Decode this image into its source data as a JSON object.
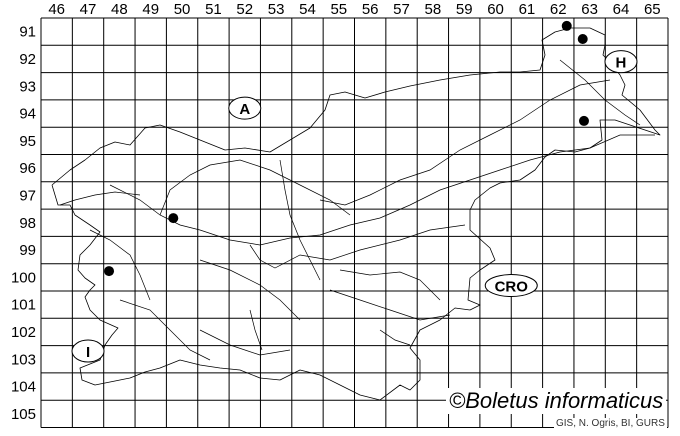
{
  "map": {
    "columns": [
      "46",
      "47",
      "48",
      "49",
      "50",
      "51",
      "52",
      "53",
      "54",
      "55",
      "56",
      "57",
      "58",
      "59",
      "60",
      "61",
      "62",
      "63",
      "64",
      "65"
    ],
    "rows": [
      "91",
      "92",
      "93",
      "94",
      "95",
      "96",
      "97",
      "98",
      "99",
      "100",
      "101",
      "102",
      "103",
      "104",
      "105"
    ],
    "country_labels": [
      {
        "text": "A",
        "col": 52.5,
        "row": 94.3
      },
      {
        "text": "H",
        "col": 64.5,
        "row": 92.6
      },
      {
        "text": "CRO",
        "col": 61.0,
        "row": 100.8
      },
      {
        "text": "I",
        "col": 47.5,
        "row": 103.2
      }
    ],
    "records": [
      {
        "col": 62.77,
        "row": 91.29
      },
      {
        "col": 63.28,
        "row": 91.77
      },
      {
        "col": 63.32,
        "row": 94.77
      },
      {
        "col": 50.22,
        "row": 98.33
      },
      {
        "col": 48.17,
        "row": 100.27
      }
    ],
    "record_color": "#000000",
    "copyright": "©Boletus informaticus",
    "credit": "GIS, N. Ogris, BI, GURS"
  }
}
